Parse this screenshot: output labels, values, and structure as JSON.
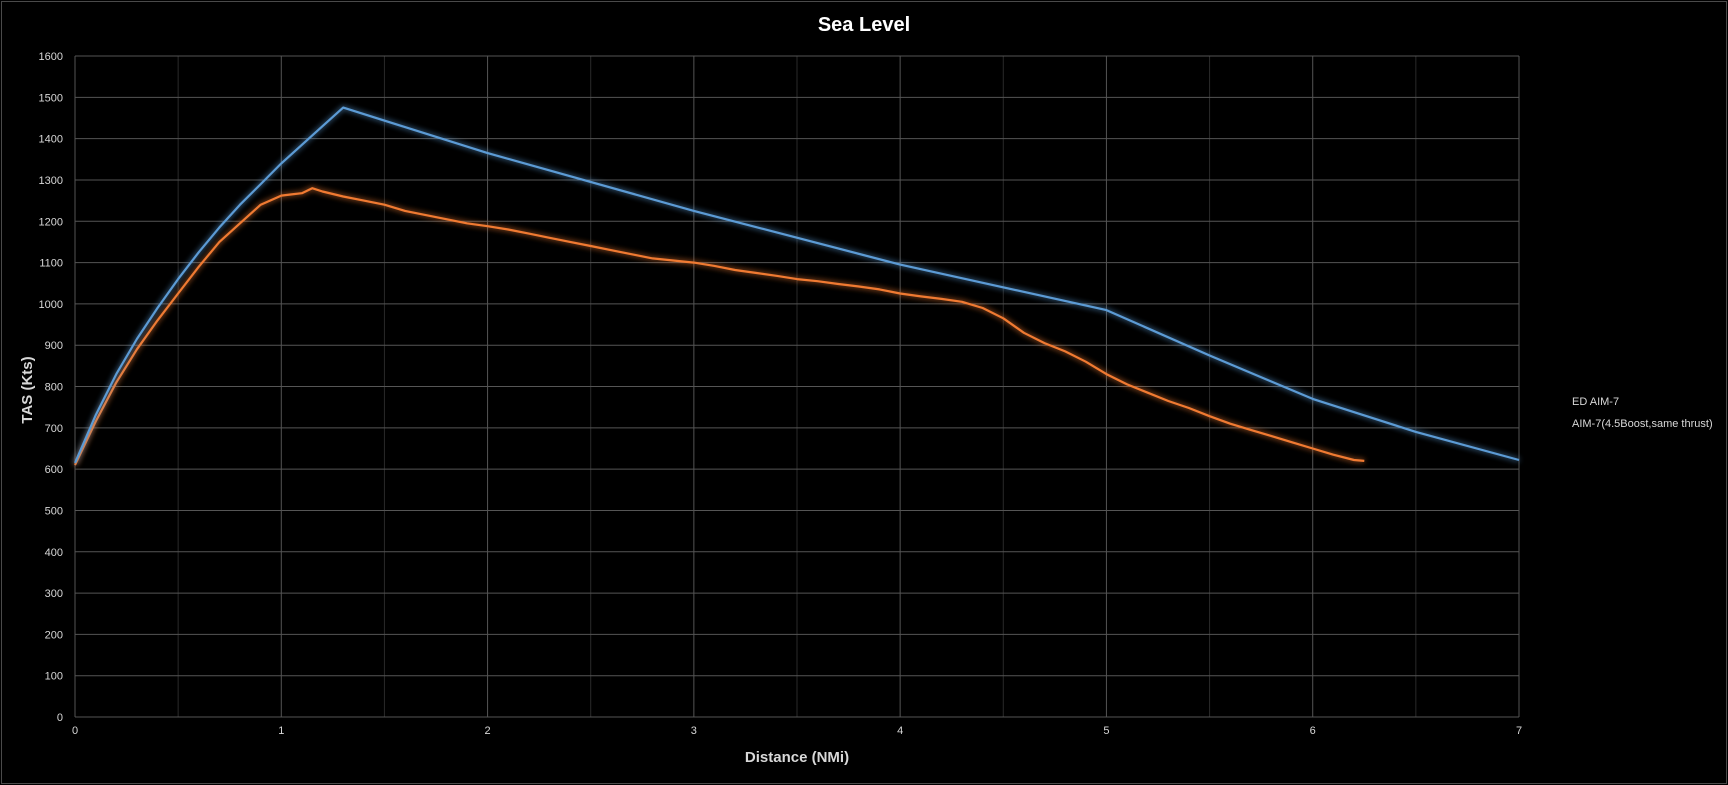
{
  "chart_data": {
    "type": "line",
    "title": "Sea Level",
    "xlabel": "Distance (NMi)",
    "ylabel": "TAS (Kts)",
    "xlim": [
      0,
      7
    ],
    "ylim": [
      0,
      1600
    ],
    "x_ticks": [
      "0",
      "1",
      "2",
      "3",
      "4",
      "5",
      "6",
      "7"
    ],
    "y_ticks": [
      "0",
      "100",
      "200",
      "300",
      "400",
      "500",
      "600",
      "700",
      "800",
      "900",
      "1000",
      "1100",
      "1200",
      "1300",
      "1400",
      "1500",
      "1600"
    ],
    "grid": true,
    "legend_position": "right",
    "series": [
      {
        "name": "ED AIM-7",
        "color": "#f07a30",
        "x": [
          0,
          0.1,
          0.2,
          0.3,
          0.4,
          0.5,
          0.6,
          0.7,
          0.8,
          0.9,
          1.0,
          1.05,
          1.1,
          1.15,
          1.2,
          1.3,
          1.4,
          1.5,
          1.6,
          1.7,
          1.8,
          1.9,
          2.0,
          2.1,
          2.2,
          2.3,
          2.4,
          2.5,
          2.6,
          2.7,
          2.8,
          2.9,
          3.0,
          3.1,
          3.2,
          3.3,
          3.4,
          3.5,
          3.6,
          3.7,
          3.8,
          3.9,
          4.0,
          4.1,
          4.2,
          4.3,
          4.4,
          4.5,
          4.6,
          4.7,
          4.8,
          4.9,
          5.0,
          5.1,
          5.2,
          5.3,
          5.4,
          5.5,
          5.6,
          5.7,
          5.8,
          5.9,
          6.0,
          6.1,
          6.2,
          6.25
        ],
        "y": [
          610,
          715,
          810,
          890,
          960,
          1025,
          1090,
          1150,
          1195,
          1240,
          1262,
          1265,
          1268,
          1280,
          1272,
          1260,
          1250,
          1240,
          1225,
          1215,
          1205,
          1195,
          1188,
          1180,
          1170,
          1160,
          1150,
          1140,
          1130,
          1120,
          1110,
          1105,
          1100,
          1092,
          1082,
          1075,
          1068,
          1060,
          1055,
          1048,
          1042,
          1035,
          1025,
          1018,
          1012,
          1005,
          990,
          965,
          930,
          905,
          885,
          860,
          830,
          805,
          785,
          765,
          748,
          728,
          710,
          695,
          680,
          665,
          650,
          635,
          622,
          620
        ]
      },
      {
        "name": "AIM-7(4.5Boost,same thrust)",
        "color": "#5b9bd5",
        "x": [
          0,
          0.1,
          0.2,
          0.3,
          0.4,
          0.5,
          0.6,
          0.7,
          0.8,
          0.9,
          1.0,
          1.1,
          1.2,
          1.3,
          2.0,
          3.0,
          4.0,
          5.0,
          5.5,
          6.0,
          6.5,
          7.0
        ],
        "y": [
          615,
          730,
          830,
          915,
          990,
          1060,
          1125,
          1185,
          1240,
          1290,
          1340,
          1385,
          1430,
          1475,
          1365,
          1225,
          1095,
          985,
          875,
          770,
          690,
          622
        ]
      }
    ]
  }
}
